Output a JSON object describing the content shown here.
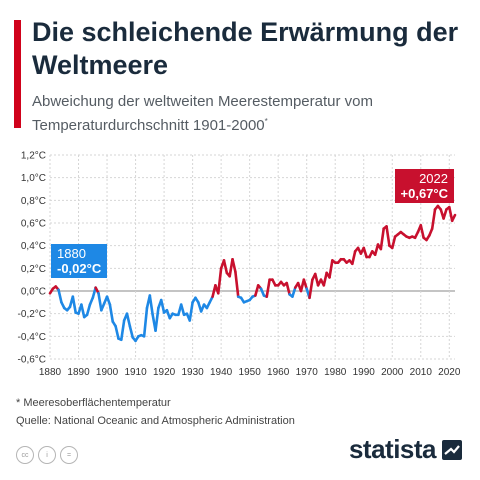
{
  "header": {
    "title": "Die schleichende Erwärmung der Weltmeere",
    "subtitle": "Abweichung der weltweiten Meerestemperatur vom Temperaturdurchschnitt 1901-2000",
    "subtitle_marker": "*"
  },
  "callouts": {
    "start": {
      "year": "1880",
      "value": "-0,02°C"
    },
    "end": {
      "year": "2022",
      "value": "+0,67°C"
    }
  },
  "footer": {
    "footnote": "* Meeresoberflächentemperatur",
    "source": "Quelle: National Oceanic and Atmospheric Administration",
    "brand": "statista"
  },
  "colors": {
    "accent": "#d0021b",
    "cool_series": "#1e88e5",
    "warm_series": "#c8102e",
    "title": "#1a2b3c"
  },
  "icons": [
    "cc-icon",
    "info-icon",
    "equal-icon",
    "statista-logo-icon"
  ],
  "chart_data": {
    "type": "line",
    "title": "",
    "xlabel": "",
    "ylabel": "",
    "xlim": [
      1880,
      2022
    ],
    "ylim": [
      -0.6,
      1.2
    ],
    "grid": true,
    "x_ticks": [
      "1880",
      "1890",
      "1900",
      "1910",
      "1920",
      "1930",
      "1940",
      "1950",
      "1960",
      "1970",
      "1980",
      "1990",
      "2000",
      "2010",
      "2020"
    ],
    "y_ticks": [
      "1,2°C",
      "1,0°C",
      "0,8°C",
      "0,6°C",
      "0,4°C",
      "0,2°C",
      "0,0°C",
      "-0,2°C",
      "-0,4°C",
      "-0,6°C"
    ],
    "color_rule": "blue when value < 0, red when value >= 0",
    "x": [
      1880,
      1881,
      1882,
      1883,
      1884,
      1885,
      1886,
      1887,
      1888,
      1889,
      1890,
      1891,
      1892,
      1893,
      1894,
      1895,
      1896,
      1897,
      1898,
      1899,
      1900,
      1901,
      1902,
      1903,
      1904,
      1905,
      1906,
      1907,
      1908,
      1909,
      1910,
      1911,
      1912,
      1913,
      1914,
      1915,
      1916,
      1917,
      1918,
      1919,
      1920,
      1921,
      1922,
      1923,
      1924,
      1925,
      1926,
      1927,
      1928,
      1929,
      1930,
      1931,
      1932,
      1933,
      1934,
      1935,
      1936,
      1937,
      1938,
      1939,
      1940,
      1941,
      1942,
      1943,
      1944,
      1945,
      1946,
      1947,
      1948,
      1949,
      1950,
      1951,
      1952,
      1953,
      1954,
      1955,
      1956,
      1957,
      1958,
      1959,
      1960,
      1961,
      1962,
      1963,
      1964,
      1965,
      1966,
      1967,
      1968,
      1969,
      1970,
      1971,
      1972,
      1973,
      1974,
      1975,
      1976,
      1977,
      1978,
      1979,
      1980,
      1981,
      1982,
      1983,
      1984,
      1985,
      1986,
      1987,
      1988,
      1989,
      1990,
      1991,
      1992,
      1993,
      1994,
      1995,
      1996,
      1997,
      1998,
      1999,
      2000,
      2001,
      2002,
      2003,
      2004,
      2005,
      2006,
      2007,
      2008,
      2009,
      2010,
      2011,
      2012,
      2013,
      2014,
      2015,
      2016,
      2017,
      2018,
      2019,
      2020,
      2021,
      2022
    ],
    "values": [
      -0.02,
      0.02,
      0.04,
      0.01,
      -0.1,
      -0.15,
      -0.17,
      -0.14,
      -0.05,
      -0.19,
      -0.2,
      -0.12,
      -0.23,
      -0.21,
      -0.12,
      -0.06,
      0.03,
      -0.02,
      -0.17,
      -0.11,
      -0.05,
      -0.12,
      -0.27,
      -0.31,
      -0.42,
      -0.43,
      -0.26,
      -0.2,
      -0.31,
      -0.41,
      -0.44,
      -0.4,
      -0.39,
      -0.4,
      -0.15,
      -0.04,
      -0.21,
      -0.35,
      -0.15,
      -0.08,
      -0.19,
      -0.17,
      -0.24,
      -0.2,
      -0.21,
      -0.21,
      -0.12,
      -0.21,
      -0.2,
      -0.26,
      -0.1,
      -0.06,
      -0.1,
      -0.18,
      -0.12,
      -0.15,
      -0.1,
      -0.05,
      0.05,
      -0.02,
      0.2,
      0.27,
      0.16,
      0.13,
      0.28,
      0.17,
      -0.05,
      -0.06,
      -0.1,
      -0.09,
      -0.08,
      -0.05,
      -0.04,
      0.05,
      0.02,
      -0.04,
      -0.05,
      0.1,
      0.1,
      0.05,
      0.05,
      0.08,
      0.05,
      0.07,
      -0.03,
      -0.05,
      0.03,
      0.07,
      0.0,
      0.1,
      0.02,
      -0.06,
      0.1,
      0.15,
      0.05,
      0.1,
      0.05,
      0.16,
      0.12,
      0.27,
      0.25,
      0.25,
      0.28,
      0.28,
      0.25,
      0.27,
      0.24,
      0.35,
      0.38,
      0.33,
      0.38,
      0.3,
      0.3,
      0.35,
      0.32,
      0.41,
      0.37,
      0.55,
      0.57,
      0.4,
      0.38,
      0.48,
      0.5,
      0.52,
      0.5,
      0.48,
      0.47,
      0.48,
      0.47,
      0.52,
      0.58,
      0.47,
      0.45,
      0.49,
      0.55,
      0.72,
      0.75,
      0.72,
      0.64,
      0.72,
      0.74,
      0.62,
      0.67
    ]
  }
}
